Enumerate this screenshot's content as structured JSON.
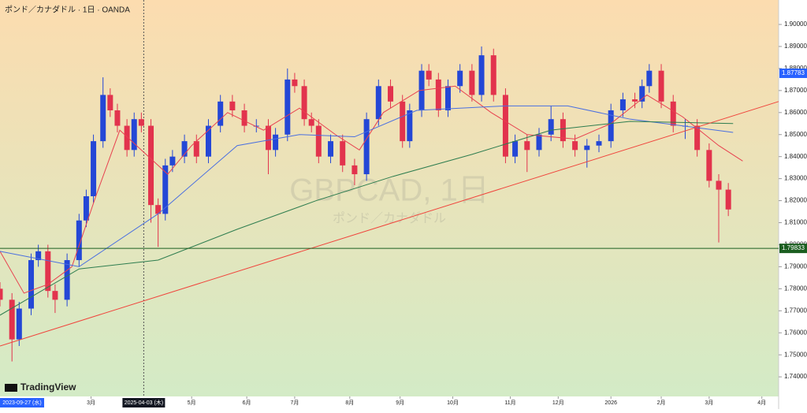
{
  "chart_data": {
    "type": "candlestick",
    "title": "ポンド／カナダドル · 1日 · OANDA",
    "watermark": "GBPCAD, 1日",
    "watermark_sub": "ポンド／カナダドル",
    "brand": "TradingView",
    "range_start_label": "2023-09-27 (水)",
    "up_color": "#2447d6",
    "down_color": "#e2334d",
    "x": [
      0,
      5,
      8,
      13,
      16,
      20,
      23,
      28,
      33,
      36,
      39,
      43,
      46,
      49,
      53,
      56,
      59,
      63,
      66,
      69,
      72,
      77,
      82,
      87,
      92,
      97,
      102,
      107,
      112,
      115,
      120,
      123,
      127,
      130,
      133,
      138,
      143,
      148,
      153,
      158,
      163,
      168,
      171,
      176,
      179,
      183,
      187,
      192,
      197,
      201,
      206,
      211,
      215,
      220,
      225,
      230,
      235,
      240,
      245,
      250,
      255,
      260,
      265,
      268,
      271,
      276,
      281,
      286,
      291,
      296,
      300,
      304
    ],
    "open": [
      1.78,
      1.775,
      1.757,
      1.771,
      1.793,
      1.797,
      1.779,
      1.775,
      1.793,
      1.811,
      1.822,
      1.847,
      1.868,
      1.861,
      1.854,
      1.843,
      1.857,
      1.854,
      1.818,
      1.814,
      1.836,
      1.84,
      1.847,
      1.84,
      1.854,
      1.865,
      1.861,
      1.854,
      1.854,
      1.843,
      1.85,
      1.875,
      1.872,
      1.857,
      1.854,
      1.84,
      1.847,
      1.836,
      1.832,
      1.857,
      1.872,
      1.865,
      1.847,
      1.861,
      1.879,
      1.875,
      1.861,
      1.872,
      1.879,
      1.868,
      1.886,
      1.868,
      1.84,
      1.847,
      1.843,
      1.85,
      1.857,
      1.847,
      1.843,
      1.845,
      1.847,
      1.861,
      1.866,
      1.865,
      1.872,
      1.879,
      1.865,
      1.854,
      1.854,
      1.843,
      1.829,
      1.825
    ],
    "high": [
      1.783,
      1.778,
      1.774,
      1.796,
      1.8,
      1.8,
      1.782,
      1.796,
      1.814,
      1.825,
      1.85,
      1.876,
      1.871,
      1.864,
      1.857,
      1.86,
      1.86,
      1.857,
      1.821,
      1.839,
      1.843,
      1.85,
      1.85,
      1.857,
      1.868,
      1.868,
      1.864,
      1.857,
      1.857,
      1.853,
      1.88,
      1.878,
      1.875,
      1.86,
      1.857,
      1.85,
      1.85,
      1.839,
      1.86,
      1.875,
      1.875,
      1.868,
      1.864,
      1.882,
      1.882,
      1.878,
      1.875,
      1.882,
      1.882,
      1.89,
      1.889,
      1.871,
      1.85,
      1.85,
      1.853,
      1.863,
      1.86,
      1.85,
      1.848,
      1.85,
      1.864,
      1.869,
      1.869,
      1.875,
      1.882,
      1.882,
      1.868,
      1.857,
      1.857,
      1.846,
      1.832,
      1.828
    ],
    "low": [
      1.772,
      1.747,
      1.754,
      1.768,
      1.79,
      1.776,
      1.769,
      1.772,
      1.79,
      1.808,
      1.819,
      1.844,
      1.858,
      1.851,
      1.84,
      1.84,
      1.851,
      1.81,
      1.799,
      1.811,
      1.833,
      1.837,
      1.837,
      1.837,
      1.851,
      1.858,
      1.851,
      1.851,
      1.832,
      1.84,
      1.847,
      1.869,
      1.854,
      1.851,
      1.837,
      1.837,
      1.833,
      1.827,
      1.829,
      1.854,
      1.862,
      1.844,
      1.844,
      1.858,
      1.872,
      1.858,
      1.858,
      1.869,
      1.865,
      1.865,
      1.865,
      1.837,
      1.837,
      1.833,
      1.84,
      1.847,
      1.844,
      1.84,
      1.835,
      1.842,
      1.844,
      1.858,
      1.862,
      1.862,
      1.869,
      1.862,
      1.851,
      1.848,
      1.84,
      1.826,
      1.801,
      1.813
    ],
    "close": [
      1.775,
      1.757,
      1.771,
      1.793,
      1.797,
      1.779,
      1.775,
      1.793,
      1.811,
      1.822,
      1.847,
      1.868,
      1.861,
      1.854,
      1.843,
      1.857,
      1.854,
      1.818,
      1.814,
      1.836,
      1.84,
      1.847,
      1.84,
      1.854,
      1.865,
      1.861,
      1.854,
      1.854,
      1.843,
      1.85,
      1.875,
      1.872,
      1.857,
      1.854,
      1.84,
      1.847,
      1.836,
      1.832,
      1.857,
      1.872,
      1.865,
      1.847,
      1.861,
      1.879,
      1.875,
      1.861,
      1.872,
      1.879,
      1.868,
      1.886,
      1.868,
      1.84,
      1.847,
      1.843,
      1.85,
      1.857,
      1.847,
      1.843,
      1.845,
      1.847,
      1.861,
      1.866,
      1.865,
      1.872,
      1.879,
      1.865,
      1.854,
      1.854,
      1.843,
      1.829,
      1.825,
      1.816
    ],
    "lines": [
      {
        "color": "#e8414f",
        "x": [
          0,
          10,
          20,
          30,
          40,
          50,
          60,
          70,
          80,
          95,
          110,
          125,
          140,
          150,
          160,
          175,
          190,
          205,
          220,
          240,
          255,
          270,
          285,
          300,
          310
        ],
        "values": [
          1.797,
          1.778,
          1.782,
          1.79,
          1.822,
          1.852,
          1.842,
          1.832,
          1.845,
          1.86,
          1.852,
          1.862,
          1.85,
          1.843,
          1.86,
          1.87,
          1.872,
          1.86,
          1.85,
          1.848,
          1.855,
          1.868,
          1.858,
          1.845,
          1.838
        ]
      },
      {
        "color": "#4a6fe0",
        "x": [
          0,
          33,
          66,
          99,
          125,
          148,
          174,
          211,
          237,
          263,
          306
        ],
        "values": [
          1.797,
          1.79,
          1.814,
          1.845,
          1.85,
          1.849,
          1.861,
          1.863,
          1.863,
          1.857,
          1.851
        ]
      },
      {
        "color": "#2e7d4f",
        "x": [
          0,
          33,
          66,
          99,
          132,
          164,
          197,
          230,
          263,
          306
        ],
        "values": [
          1.768,
          1.789,
          1.793,
          1.807,
          1.82,
          1.831,
          1.841,
          1.852,
          1.856,
          1.855
        ]
      },
      {
        "color": "#f0443c",
        "x": [
          0,
          325
        ],
        "values": [
          1.754,
          1.865
        ]
      }
    ],
    "price_lines": [
      {
        "value": 1.87783,
        "color": "#2962ff"
      },
      {
        "value": 1.79833,
        "color": "#1b5e20"
      }
    ],
    "crosshair": {
      "value": 60,
      "label": "2025-04-03 (木)"
    },
    "xlim": [
      0,
      325
    ],
    "xticks": [
      {
        "value": 38,
        "label": "3月"
      },
      {
        "value": 80,
        "label": "5月"
      },
      {
        "value": 103,
        "label": "6月"
      },
      {
        "value": 123,
        "label": "7月"
      },
      {
        "value": 146,
        "label": "8月"
      },
      {
        "value": 167,
        "label": "9月"
      },
      {
        "value": 189,
        "label": "10月"
      },
      {
        "value": 213,
        "label": "11月"
      },
      {
        "value": 233,
        "label": "12月"
      },
      {
        "value": 255,
        "label": "2026"
      },
      {
        "value": 276,
        "label": "2月"
      },
      {
        "value": 296,
        "label": "3月"
      },
      {
        "value": 318,
        "label": "4月"
      }
    ],
    "ylim": [
      1.7311,
      1.9111
    ],
    "yticks": [
      {
        "value": 1.74,
        "label": "1.74000"
      },
      {
        "value": 1.75,
        "label": "1.75000"
      },
      {
        "value": 1.76,
        "label": "1.76000"
      },
      {
        "value": 1.77,
        "label": "1.77000"
      },
      {
        "value": 1.78,
        "label": "1.78000"
      },
      {
        "value": 1.79,
        "label": "1.79000"
      },
      {
        "value": 1.8,
        "label": "1.80000"
      },
      {
        "value": 1.81,
        "label": "1.81000"
      },
      {
        "value": 1.82,
        "label": "1.82000"
      },
      {
        "value": 1.83,
        "label": "1.83000"
      },
      {
        "value": 1.84,
        "label": "1.84000"
      },
      {
        "value": 1.85,
        "label": "1.85000"
      },
      {
        "value": 1.86,
        "label": "1.86000"
      },
      {
        "value": 1.87,
        "label": "1.87000"
      },
      {
        "value": 1.88,
        "label": "1.88000"
      },
      {
        "value": 1.89,
        "label": "1.89000"
      },
      {
        "value": 1.9,
        "label": "1.90000"
      }
    ]
  }
}
